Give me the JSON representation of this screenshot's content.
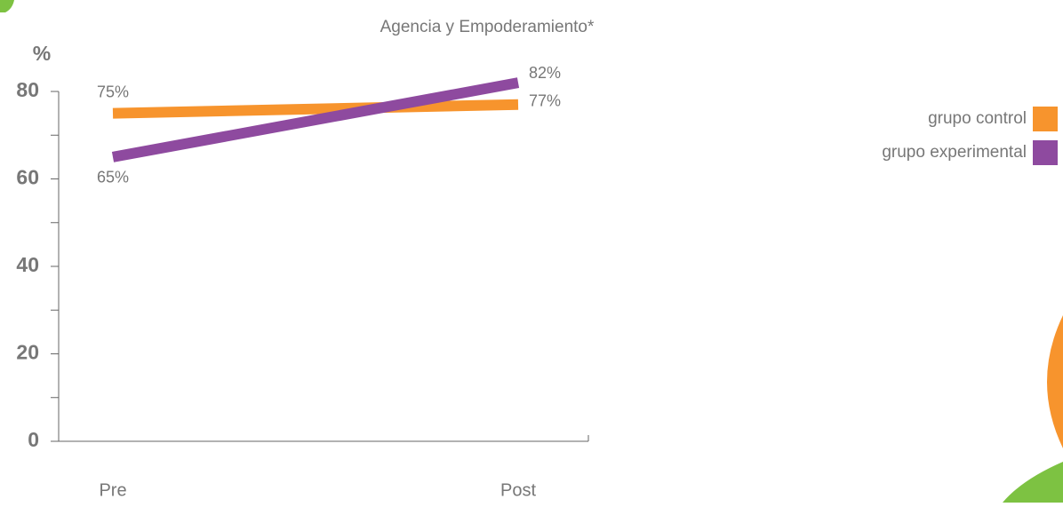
{
  "chart_data": {
    "type": "line",
    "title": "Agencia y Empoderamiento*",
    "y_label": "%",
    "categories": [
      "Pre",
      "Post"
    ],
    "series": [
      {
        "name": "grupo control",
        "color": "#f7942d",
        "values": [
          75,
          77
        ],
        "value_labels": [
          "75%",
          "77%"
        ]
      },
      {
        "name": "grupo experimental",
        "color": "#8e4a9f",
        "values": [
          65,
          82
        ],
        "value_labels": [
          "65%",
          "82%"
        ]
      }
    ],
    "ylim": [
      0,
      80
    ],
    "yticks": [
      0,
      20,
      40,
      60,
      80
    ],
    "legend": "right"
  }
}
